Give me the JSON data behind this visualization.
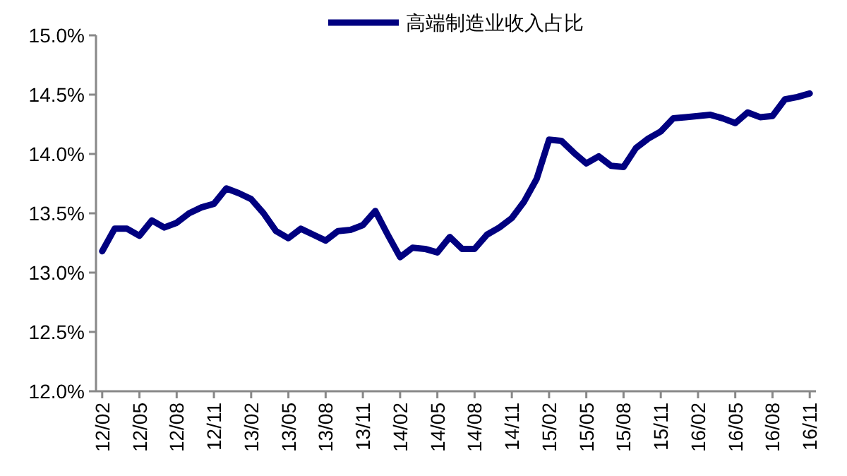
{
  "chart_data": {
    "type": "line",
    "categories": [
      "12/02",
      null,
      null,
      "12/05",
      null,
      null,
      "12/08",
      null,
      null,
      "12/11",
      null,
      null,
      "13/02",
      null,
      null,
      "13/05",
      null,
      null,
      "13/08",
      null,
      null,
      "13/11",
      null,
      null,
      "14/02",
      null,
      null,
      "14/05",
      null,
      null,
      "14/08",
      null,
      null,
      "14/11",
      null,
      null,
      "15/02",
      null,
      null,
      "15/05",
      null,
      null,
      "15/08",
      null,
      null,
      "15/11",
      null,
      null,
      "16/02",
      null,
      null,
      "16/05",
      null,
      null,
      "16/08",
      null,
      null,
      "16/11"
    ],
    "series": [
      {
        "name": "高端制造业收入占比",
        "color": "#000080",
        "values": [
          13.18,
          13.37,
          13.37,
          13.31,
          13.44,
          13.38,
          13.42,
          13.5,
          13.55,
          13.58,
          13.71,
          13.67,
          13.62,
          13.5,
          13.35,
          13.29,
          13.37,
          13.32,
          13.27,
          13.35,
          13.36,
          13.4,
          13.52,
          13.32,
          13.13,
          13.21,
          13.2,
          13.17,
          13.3,
          13.2,
          13.2,
          13.32,
          13.38,
          13.46,
          13.6,
          13.79,
          14.12,
          14.11,
          14.01,
          13.92,
          13.98,
          13.9,
          13.89,
          14.05,
          14.13,
          14.19,
          14.3,
          14.31,
          14.32,
          14.33,
          14.3,
          14.26,
          14.35,
          14.31,
          14.32,
          14.46,
          14.48,
          14.51
        ]
      }
    ],
    "ylim": [
      12,
      15
    ],
    "yticks": [
      {
        "value": 12,
        "label": "12.0%"
      },
      {
        "value": 12.5,
        "label": "12.5%"
      },
      {
        "value": 13,
        "label": "13.0%"
      },
      {
        "value": 13.5,
        "label": "13.5%"
      },
      {
        "value": 14,
        "label": "14.0%"
      },
      {
        "value": 14.5,
        "label": "14.5%"
      },
      {
        "value": 15,
        "label": "15.0%"
      }
    ],
    "legend": "top",
    "grid": false,
    "marker": "none",
    "line_style": "solid"
  }
}
